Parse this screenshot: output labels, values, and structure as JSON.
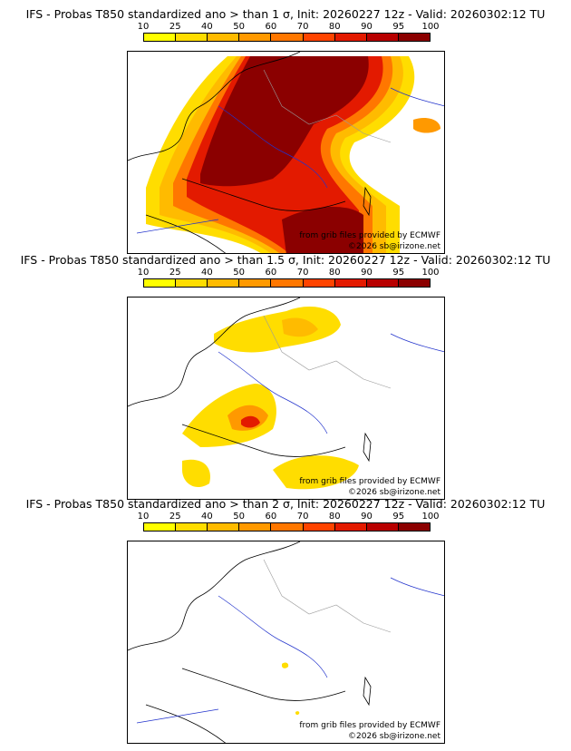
{
  "scale": {
    "labels": [
      "10",
      "25",
      "40",
      "50",
      "60",
      "70",
      "80",
      "90",
      "95",
      "100"
    ],
    "colors": [
      "#ffff00",
      "#ffdd00",
      "#ffbb00",
      "#ff9900",
      "#ff7700",
      "#ff4400",
      "#e31a00",
      "#b80000",
      "#8b0000"
    ]
  },
  "panels": [
    {
      "title": "IFS - Probas T850  standardized ano > than 1 σ, Init: 20260227 12z - Valid: 20260302:12 TU"
    },
    {
      "title": "IFS - Probas T850  standardized ano > than 1.5 σ, Init: 20260227 12z - Valid: 20260302:12 TU"
    },
    {
      "title": "IFS - Probas T850  standardized ano > than 2 σ, Init: 20260227 12z - Valid: 20260302:12 TU"
    }
  ],
  "credits": {
    "grib": "from grib files provided by ECMWF",
    "copyright": "©2026 sb@irizone.net"
  }
}
